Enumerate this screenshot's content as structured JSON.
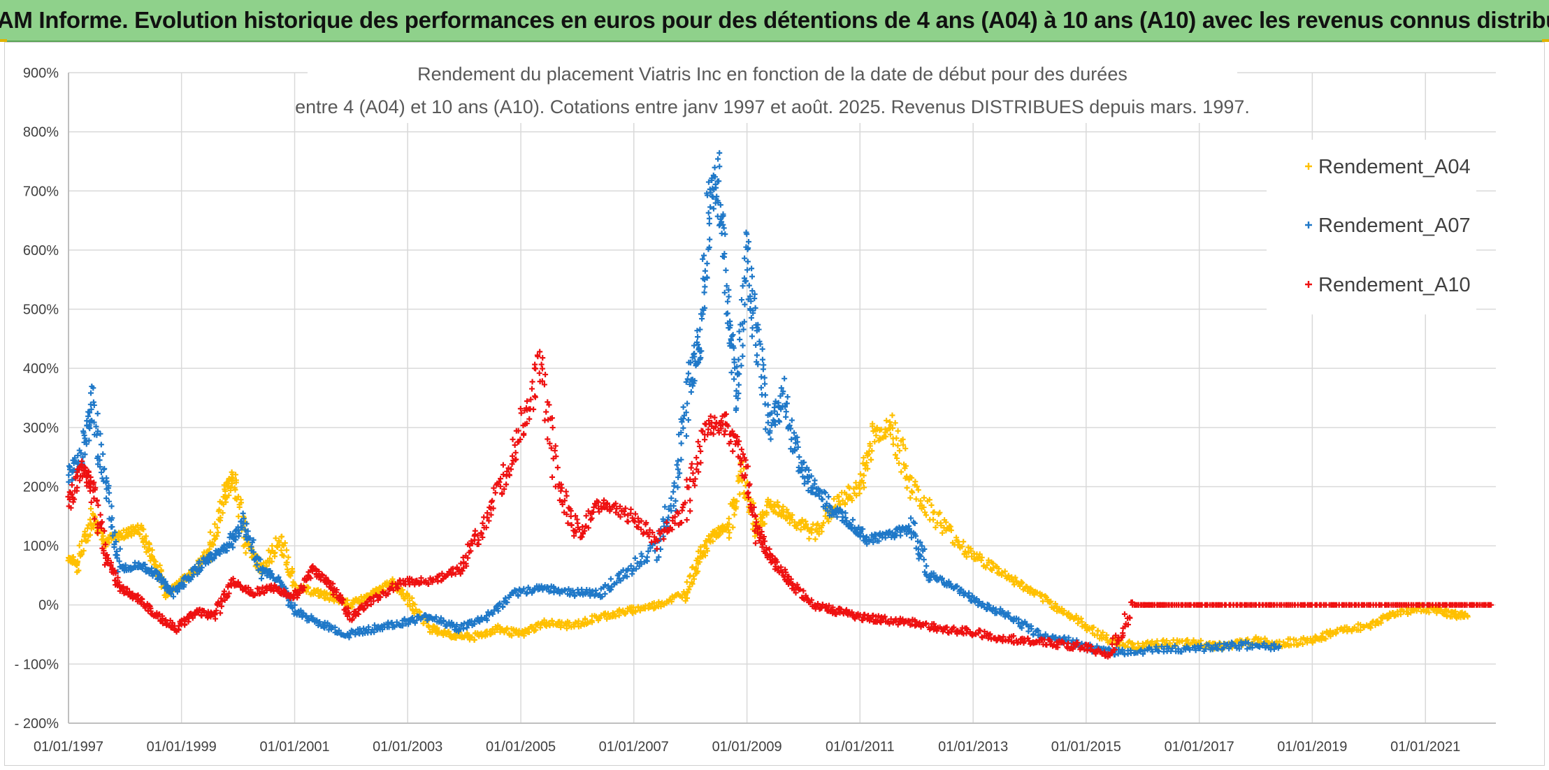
{
  "banner": {
    "title": "ADAM Informe. Evolution historique des performances en euros pour des détentions de 4 ans (A04) à 10 ans (A10) avec les revenus connus distribués"
  },
  "colors": {
    "A04": "#ffc000",
    "A07": "#1f78c8",
    "A10": "#ee1111",
    "grid": "#d9d9d9",
    "banner": "#8fd18b"
  },
  "chart_data": {
    "type": "scatter",
    "title_line1": "Rendement du placement Viatris Inc en fonction de la date de début pour des durées",
    "title_line2": "entre 4 (A04) et 10 ans (A10). Cotations entre janv 1997 et août. 2025. Revenus DISTRIBUES depuis mars. 1997.",
    "xlabel": "",
    "ylabel": "",
    "x_range": [
      "1997-01-01",
      "2022-04-01"
    ],
    "ylim": [
      -200,
      900
    ],
    "y_ticks": [
      900,
      800,
      700,
      600,
      500,
      400,
      300,
      200,
      100,
      0,
      -100,
      -200
    ],
    "y_tick_labels": [
      "900%",
      "800%",
      "700%",
      "600%",
      "500%",
      "400%",
      "300%",
      "200%",
      "100%",
      "0%",
      "- 100%",
      "- 200%"
    ],
    "x_ticks": [
      "1997-01-01",
      "1999-01-01",
      "2001-01-01",
      "2003-01-01",
      "2005-01-01",
      "2007-01-01",
      "2009-01-01",
      "2011-01-01",
      "2013-01-01",
      "2015-01-01",
      "2017-01-01",
      "2019-01-01",
      "2021-01-01"
    ],
    "x_tick_labels": [
      "01/01/1997",
      "01/01/1999",
      "01/01/2001",
      "01/01/2003",
      "01/01/2005",
      "01/01/2007",
      "01/01/2009",
      "01/01/2011",
      "01/01/2013",
      "01/01/2015",
      "01/01/2017",
      "01/01/2019",
      "01/01/2021"
    ],
    "grid": true,
    "legend_position": "top-right",
    "series": [
      {
        "name": "Rendement_A04",
        "key": "A04",
        "points": [
          [
            "1997-01-01",
            80
          ],
          [
            "1997-03-01",
            70
          ],
          [
            "1997-06-01",
            150
          ],
          [
            "1997-09-01",
            110
          ],
          [
            "1998-01-01",
            120
          ],
          [
            "1998-04-01",
            130
          ],
          [
            "1998-07-01",
            80
          ],
          [
            "1998-10-01",
            20
          ],
          [
            "1999-01-01",
            40
          ],
          [
            "1999-04-01",
            60
          ],
          [
            "1999-07-01",
            90
          ],
          [
            "1999-10-01",
            180
          ],
          [
            "1999-12-01",
            220
          ],
          [
            "2000-03-01",
            100
          ],
          [
            "2000-06-01",
            60
          ],
          [
            "2000-10-01",
            110
          ],
          [
            "2001-01-01",
            30
          ],
          [
            "2001-06-01",
            20
          ],
          [
            "2001-10-01",
            10
          ],
          [
            "2002-01-01",
            0
          ],
          [
            "2002-06-01",
            20
          ],
          [
            "2002-10-01",
            40
          ],
          [
            "2003-01-01",
            10
          ],
          [
            "2003-06-01",
            -40
          ],
          [
            "2003-10-01",
            -50
          ],
          [
            "2004-03-01",
            -55
          ],
          [
            "2004-08-01",
            -40
          ],
          [
            "2005-01-01",
            -50
          ],
          [
            "2005-06-01",
            -30
          ],
          [
            "2005-12-01",
            -35
          ],
          [
            "2006-06-01",
            -20
          ],
          [
            "2006-12-01",
            -10
          ],
          [
            "2007-06-01",
            0
          ],
          [
            "2007-12-01",
            20
          ],
          [
            "2008-03-01",
            80
          ],
          [
            "2008-06-01",
            120
          ],
          [
            "2008-09-01",
            130
          ],
          [
            "2008-12-01",
            220
          ],
          [
            "2009-03-01",
            130
          ],
          [
            "2009-06-01",
            170
          ],
          [
            "2009-10-01",
            150
          ],
          [
            "2010-03-01",
            120
          ],
          [
            "2010-08-01",
            170
          ],
          [
            "2011-01-01",
            200
          ],
          [
            "2011-04-01",
            290
          ],
          [
            "2011-08-01",
            300
          ],
          [
            "2011-12-01",
            200
          ],
          [
            "2012-06-01",
            140
          ],
          [
            "2012-12-01",
            90
          ],
          [
            "2013-06-01",
            60
          ],
          [
            "2013-12-01",
            30
          ],
          [
            "2014-06-01",
            0
          ],
          [
            "2014-12-01",
            -30
          ],
          [
            "2015-06-01",
            -60
          ],
          [
            "2015-12-01",
            -70
          ],
          [
            "2016-06-01",
            -65
          ],
          [
            "2017-01-01",
            -65
          ],
          [
            "2017-06-01",
            -70
          ],
          [
            "2018-01-01",
            -60
          ],
          [
            "2018-06-01",
            -65
          ],
          [
            "2019-01-01",
            -60
          ],
          [
            "2019-06-01",
            -45
          ],
          [
            "2020-01-01",
            -35
          ],
          [
            "2020-06-01",
            -15
          ],
          [
            "2021-01-01",
            -5
          ],
          [
            "2021-06-01",
            -15
          ],
          [
            "2021-10-01",
            -20
          ]
        ]
      },
      {
        "name": "Rendement_A07",
        "key": "A07",
        "points": [
          [
            "1997-01-01",
            220
          ],
          [
            "1997-04-01",
            250
          ],
          [
            "1997-06-01",
            340
          ],
          [
            "1997-09-01",
            200
          ],
          [
            "1997-12-01",
            60
          ],
          [
            "1998-04-01",
            70
          ],
          [
            "1998-08-01",
            50
          ],
          [
            "1998-11-01",
            20
          ],
          [
            "1999-03-01",
            50
          ],
          [
            "1999-07-01",
            80
          ],
          [
            "1999-11-01",
            100
          ],
          [
            "2000-02-01",
            140
          ],
          [
            "2000-06-01",
            60
          ],
          [
            "2000-10-01",
            40
          ],
          [
            "2001-01-01",
            -10
          ],
          [
            "2001-06-01",
            -30
          ],
          [
            "2001-12-01",
            -50
          ],
          [
            "2002-06-01",
            -40
          ],
          [
            "2002-12-01",
            -30
          ],
          [
            "2003-06-01",
            -20
          ],
          [
            "2003-12-01",
            -40
          ],
          [
            "2004-06-01",
            -20
          ],
          [
            "2004-12-01",
            20
          ],
          [
            "2005-06-01",
            30
          ],
          [
            "2005-12-01",
            20
          ],
          [
            "2006-06-01",
            20
          ],
          [
            "2006-12-01",
            60
          ],
          [
            "2007-06-01",
            100
          ],
          [
            "2007-10-01",
            200
          ],
          [
            "2008-01-01",
            380
          ],
          [
            "2008-03-01",
            450
          ],
          [
            "2008-05-01",
            680
          ],
          [
            "2008-07-01",
            720
          ],
          [
            "2008-09-01",
            500
          ],
          [
            "2008-11-01",
            350
          ],
          [
            "2009-01-01",
            600
          ],
          [
            "2009-03-01",
            450
          ],
          [
            "2009-06-01",
            300
          ],
          [
            "2009-09-01",
            350
          ],
          [
            "2009-12-01",
            240
          ],
          [
            "2010-03-01",
            200
          ],
          [
            "2010-07-01",
            160
          ],
          [
            "2010-11-01",
            140
          ],
          [
            "2011-03-01",
            110
          ],
          [
            "2011-08-01",
            120
          ],
          [
            "2011-12-01",
            130
          ],
          [
            "2012-04-01",
            50
          ],
          [
            "2012-09-01",
            30
          ],
          [
            "2013-03-01",
            0
          ],
          [
            "2013-09-01",
            -20
          ],
          [
            "2014-03-01",
            -50
          ],
          [
            "2014-09-01",
            -60
          ],
          [
            "2015-03-01",
            -75
          ],
          [
            "2015-09-01",
            -80
          ],
          [
            "2016-06-01",
            -75
          ],
          [
            "2017-03-01",
            -72
          ],
          [
            "2017-10-01",
            -68
          ],
          [
            "2018-06-01",
            -70
          ]
        ]
      },
      {
        "name": "Rendement_A10",
        "key": "A10",
        "points": [
          [
            "1997-01-01",
            170
          ],
          [
            "1997-04-01",
            230
          ],
          [
            "1997-06-01",
            200
          ],
          [
            "1997-09-01",
            80
          ],
          [
            "1997-12-01",
            30
          ],
          [
            "1998-04-01",
            10
          ],
          [
            "1998-08-01",
            -20
          ],
          [
            "1998-12-01",
            -40
          ],
          [
            "1999-04-01",
            -10
          ],
          [
            "1999-08-01",
            -20
          ],
          [
            "1999-12-01",
            40
          ],
          [
            "2000-04-01",
            20
          ],
          [
            "2000-09-01",
            30
          ],
          [
            "2001-01-01",
            10
          ],
          [
            "2001-05-01",
            60
          ],
          [
            "2001-09-01",
            30
          ],
          [
            "2002-01-01",
            -20
          ],
          [
            "2002-06-01",
            10
          ],
          [
            "2002-12-01",
            40
          ],
          [
            "2003-06-01",
            40
          ],
          [
            "2003-12-01",
            60
          ],
          [
            "2004-04-01",
            120
          ],
          [
            "2004-09-01",
            200
          ],
          [
            "2005-01-01",
            300
          ],
          [
            "2005-05-01",
            400
          ],
          [
            "2005-09-01",
            200
          ],
          [
            "2006-01-01",
            120
          ],
          [
            "2006-06-01",
            170
          ],
          [
            "2006-12-01",
            150
          ],
          [
            "2007-06-01",
            110
          ],
          [
            "2007-12-01",
            160
          ],
          [
            "2008-04-01",
            300
          ],
          [
            "2008-08-01",
            310
          ],
          [
            "2008-12-01",
            250
          ],
          [
            "2009-03-01",
            130
          ],
          [
            "2009-06-01",
            80
          ],
          [
            "2009-10-01",
            40
          ],
          [
            "2010-03-01",
            0
          ],
          [
            "2010-08-01",
            -10
          ],
          [
            "2011-01-01",
            -20
          ],
          [
            "2011-06-01",
            -25
          ],
          [
            "2011-12-01",
            -30
          ],
          [
            "2012-06-01",
            -40
          ],
          [
            "2012-12-01",
            -45
          ],
          [
            "2013-06-01",
            -55
          ],
          [
            "2013-12-01",
            -60
          ],
          [
            "2014-06-01",
            -65
          ],
          [
            "2014-12-01",
            -70
          ],
          [
            "2015-06-01",
            -85
          ],
          [
            "2015-11-01",
            0
          ],
          [
            "2016-06-01",
            0
          ],
          [
            "2017-06-01",
            0
          ],
          [
            "2018-06-01",
            0
          ],
          [
            "2019-06-01",
            0
          ],
          [
            "2020-06-01",
            0
          ],
          [
            "2021-06-01",
            0
          ],
          [
            "2022-03-01",
            0
          ]
        ]
      }
    ]
  }
}
